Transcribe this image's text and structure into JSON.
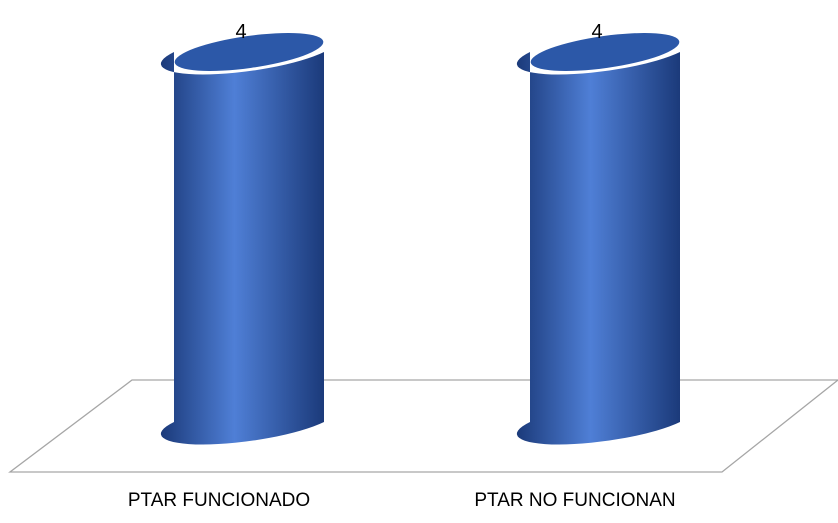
{
  "chart_data": {
    "type": "bar",
    "style": "3d-cylinder",
    "categories": [
      "PTAR FUNCIONADO",
      "PTAR NO FUNCIONAN"
    ],
    "values": [
      4,
      4
    ],
    "data_labels": [
      "4",
      "4"
    ],
    "title": "",
    "xlabel": "",
    "ylabel": "",
    "ylim": [
      0,
      4
    ],
    "grid": false,
    "legend": "none",
    "colors": {
      "bar_light": "#4F7FD6",
      "bar_mid": "#2F5DB4",
      "bar_dark": "#1B3A7A",
      "top_face": "#2C58A8",
      "floor_stroke": "#A6A6A6"
    }
  }
}
